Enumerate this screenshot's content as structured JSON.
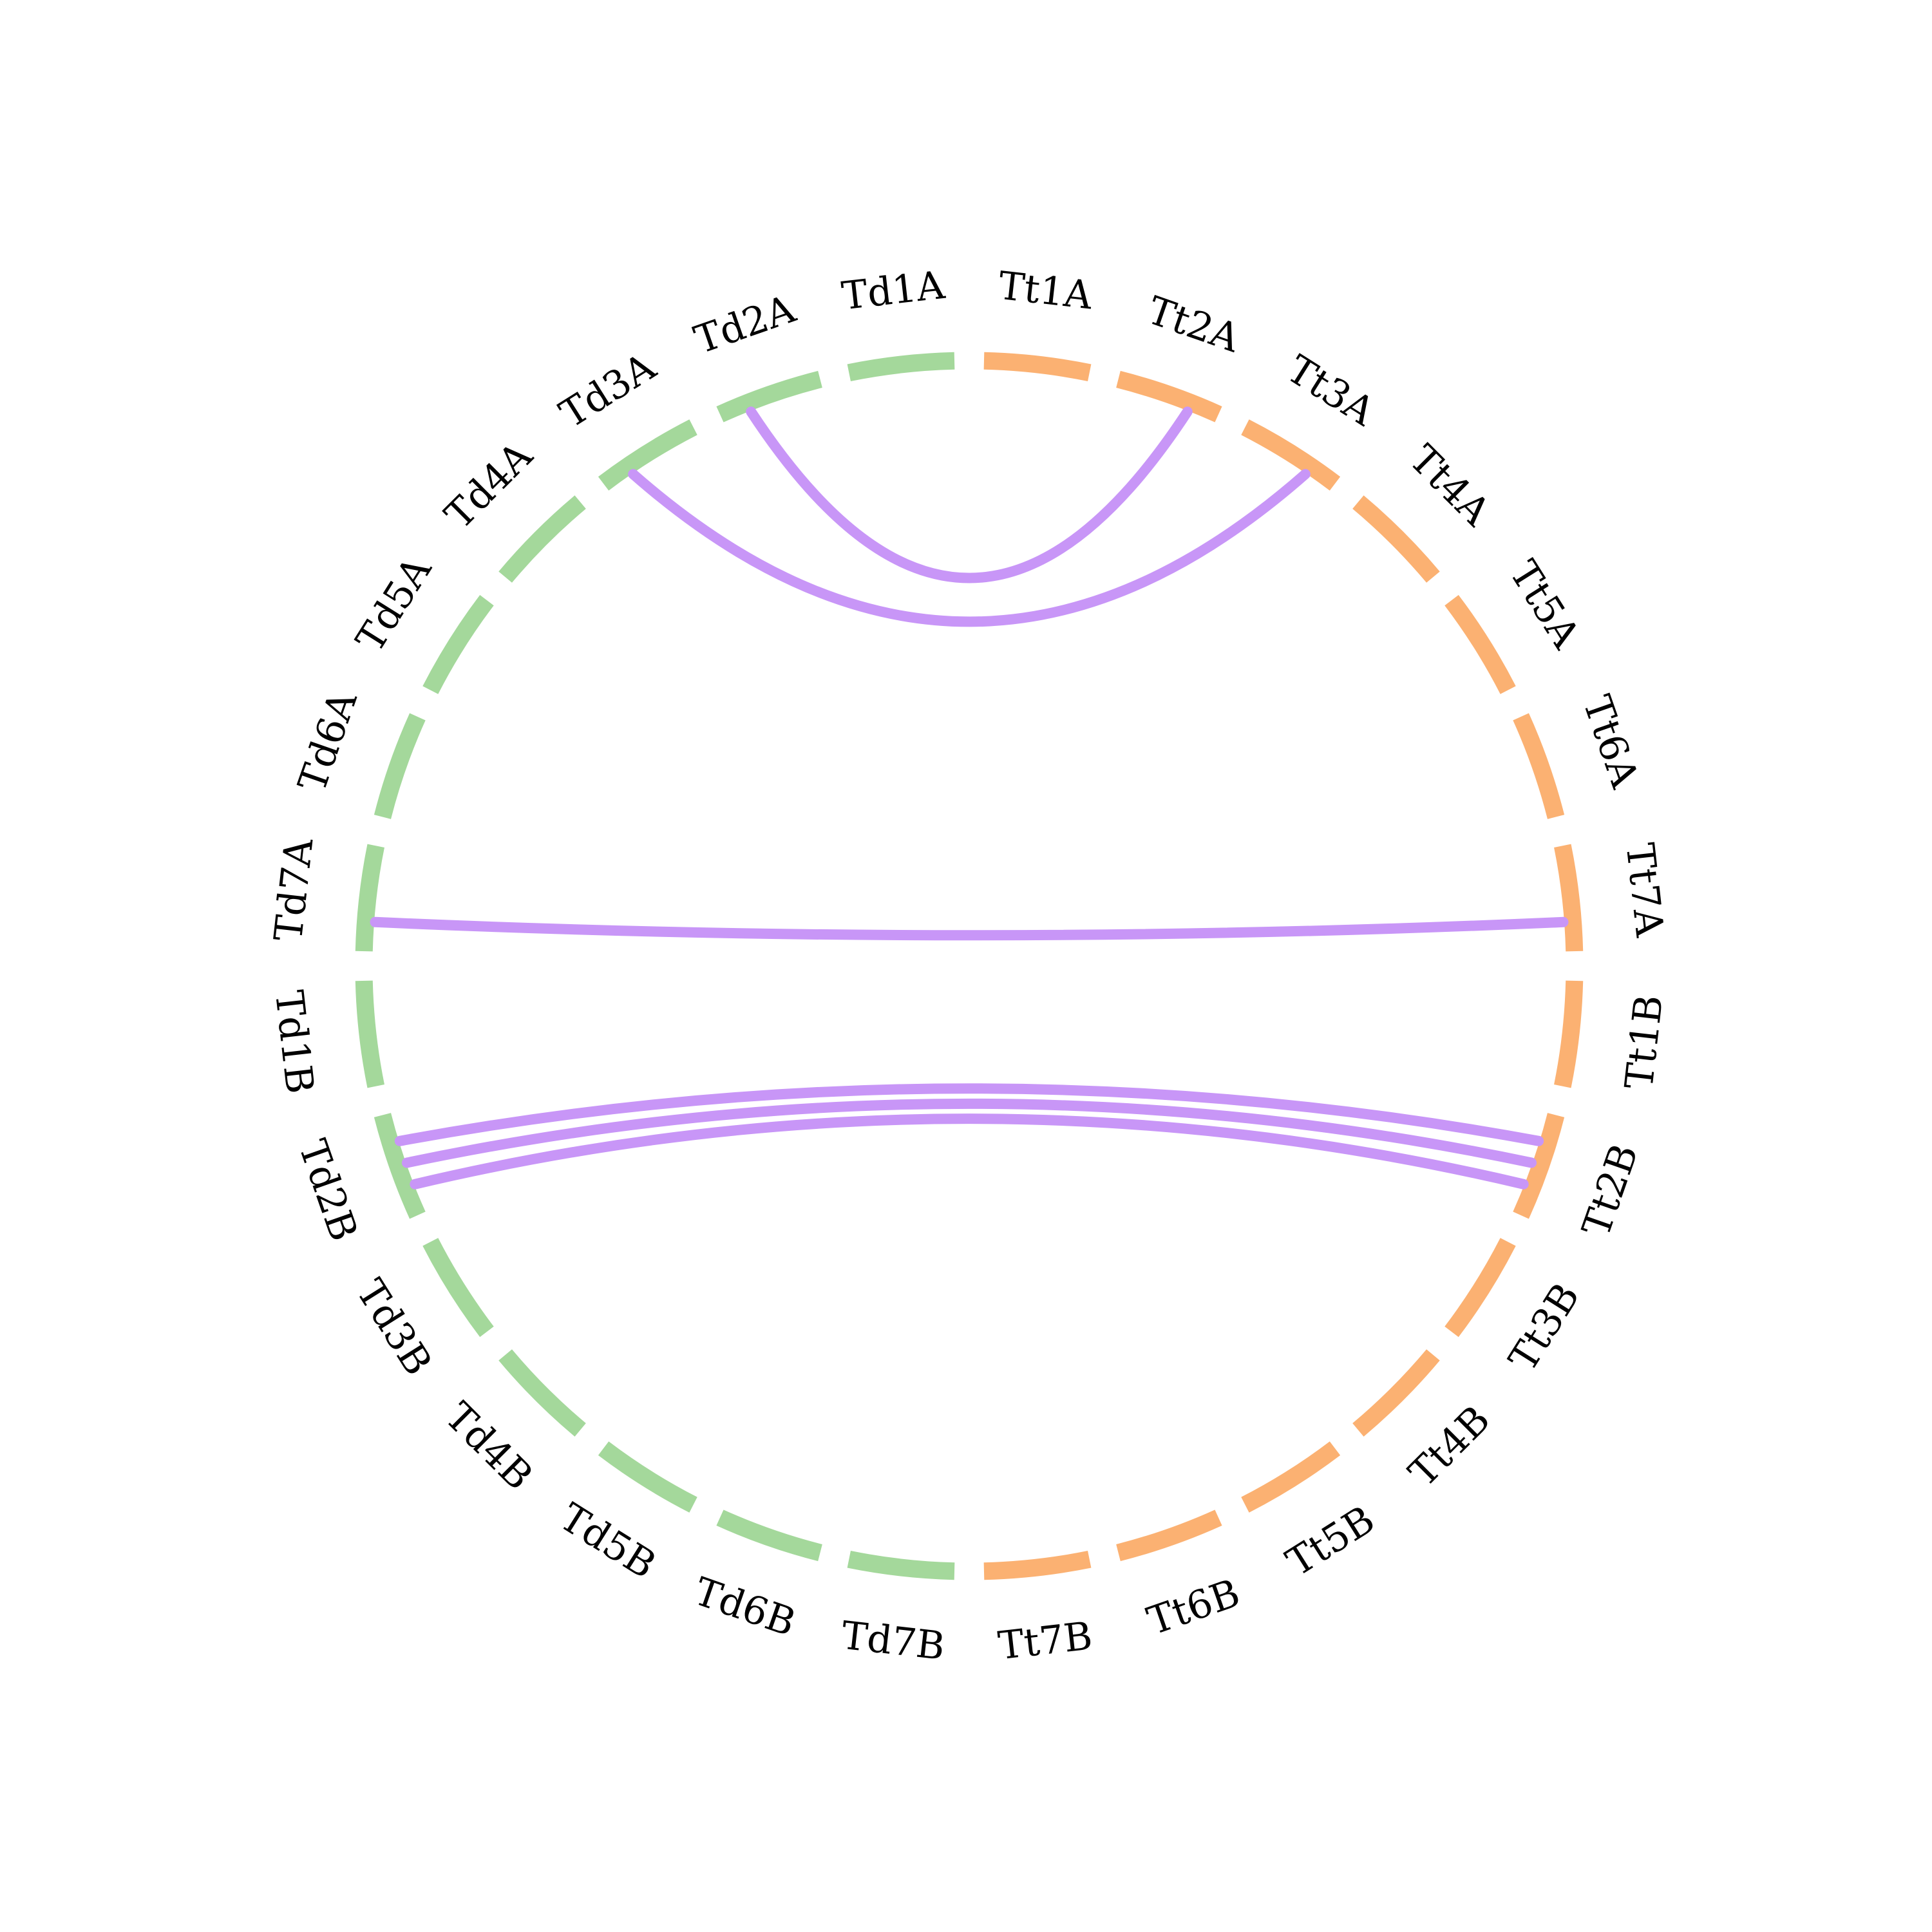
{
  "chart_data": {
    "type": "circos",
    "colors": {
      "Td": "#a4d89b",
      "Tt": "#fbb172",
      "link": "#c896f7"
    },
    "chromosomes": [
      {
        "name": "Td1A",
        "genome": "Td"
      },
      {
        "name": "Td2A",
        "genome": "Td"
      },
      {
        "name": "Td3A",
        "genome": "Td"
      },
      {
        "name": "Td4A",
        "genome": "Td"
      },
      {
        "name": "Td5A",
        "genome": "Td"
      },
      {
        "name": "Td6A",
        "genome": "Td"
      },
      {
        "name": "Td7A",
        "genome": "Td"
      },
      {
        "name": "Td1B",
        "genome": "Td"
      },
      {
        "name": "Td2B",
        "genome": "Td"
      },
      {
        "name": "Td3B",
        "genome": "Td"
      },
      {
        "name": "Td4B",
        "genome": "Td"
      },
      {
        "name": "Td5B",
        "genome": "Td"
      },
      {
        "name": "Td6B",
        "genome": "Td"
      },
      {
        "name": "Td7B",
        "genome": "Td"
      },
      {
        "name": "Tt7B",
        "genome": "Tt"
      },
      {
        "name": "Tt6B",
        "genome": "Tt"
      },
      {
        "name": "Tt5B",
        "genome": "Tt"
      },
      {
        "name": "Tt4B",
        "genome": "Tt"
      },
      {
        "name": "Tt3B",
        "genome": "Tt"
      },
      {
        "name": "Tt2B",
        "genome": "Tt"
      },
      {
        "name": "Tt1B",
        "genome": "Tt"
      },
      {
        "name": "Tt7A",
        "genome": "Tt"
      },
      {
        "name": "Tt6A",
        "genome": "Tt"
      },
      {
        "name": "Tt5A",
        "genome": "Tt"
      },
      {
        "name": "Tt4A",
        "genome": "Tt"
      },
      {
        "name": "Tt3A",
        "genome": "Tt"
      },
      {
        "name": "Tt2A",
        "genome": "Tt"
      },
      {
        "name": "Tt1A",
        "genome": "Tt"
      }
    ],
    "links": [
      {
        "from": "Td2A",
        "to": "Tt2A"
      },
      {
        "from": "Td3A",
        "to": "Tt3A"
      },
      {
        "from": "Td7A",
        "to": "Tt7A"
      },
      {
        "from": "Td2B",
        "to": "Tt2B"
      },
      {
        "from": "Td2B",
        "to": "Tt2B"
      },
      {
        "from": "Td2B",
        "to": "Tt2B"
      }
    ]
  }
}
